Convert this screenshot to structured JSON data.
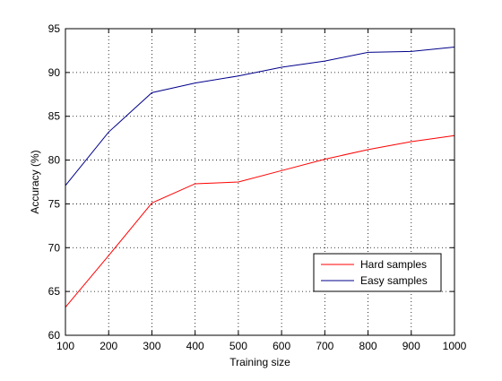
{
  "chart_data": {
    "type": "line",
    "title": "",
    "xlabel": "Training size",
    "ylabel": "Accuracy (%)",
    "xlim": [
      100,
      1000
    ],
    "ylim": [
      60,
      95
    ],
    "xticks": [
      100,
      200,
      300,
      400,
      500,
      600,
      700,
      800,
      900,
      1000
    ],
    "yticks": [
      60,
      65,
      70,
      75,
      80,
      85,
      90,
      95
    ],
    "grid": true,
    "legend_position": "bottom-right",
    "x": [
      100,
      200,
      300,
      400,
      500,
      600,
      700,
      800,
      900,
      1000
    ],
    "series": [
      {
        "name": "Hard samples",
        "color": "#ff0000",
        "values": [
          63.2,
          69.1,
          75.1,
          77.3,
          77.5,
          78.8,
          80.1,
          81.2,
          82.1,
          82.8
        ]
      },
      {
        "name": "Easy samples",
        "color": "#00008b",
        "values": [
          77.1,
          83.2,
          87.7,
          88.8,
          89.6,
          90.6,
          91.3,
          92.3,
          92.4,
          92.9
        ]
      }
    ]
  }
}
